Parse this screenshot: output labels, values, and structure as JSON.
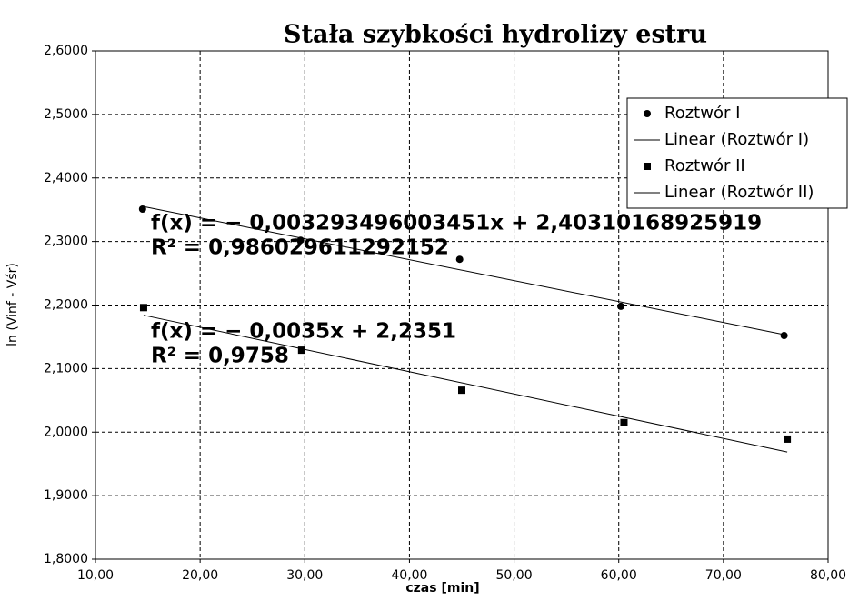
{
  "chart_data": {
    "type": "scatter",
    "title": "Stała szybkości hydrolizy estru",
    "xlabel": "czas [min]",
    "ylabel": "ln (Vinf  - Vśr)",
    "xlim": [
      10,
      80
    ],
    "ylim": [
      1.8,
      2.6
    ],
    "xticks": [
      {
        "value": 10,
        "label": "10,00"
      },
      {
        "value": 20,
        "label": "20,00"
      },
      {
        "value": 30,
        "label": "30,00"
      },
      {
        "value": 40,
        "label": "40,00"
      },
      {
        "value": 50,
        "label": "50,00"
      },
      {
        "value": 60,
        "label": "60,00"
      },
      {
        "value": 70,
        "label": "70,00"
      },
      {
        "value": 80,
        "label": "80,00"
      }
    ],
    "yticks": [
      {
        "value": 1.8,
        "label": "1,8000"
      },
      {
        "value": 1.9,
        "label": "1,9000"
      },
      {
        "value": 2.0,
        "label": "2,0000"
      },
      {
        "value": 2.1,
        "label": "2,1000"
      },
      {
        "value": 2.2,
        "label": "2,2000"
      },
      {
        "value": 2.3,
        "label": "2,3000"
      },
      {
        "value": 2.4,
        "label": "2,4000"
      },
      {
        "value": 2.5,
        "label": "2,5000"
      },
      {
        "value": 2.6,
        "label": "2,6000"
      }
    ],
    "grid": true,
    "legend_position": "upper right",
    "series": [
      {
        "name": "Roztwór I",
        "marker": "circle",
        "color": "#000000",
        "x": [
          14.5,
          29.6,
          44.8,
          60.2,
          75.8
        ],
        "values": [
          2.351,
          2.302,
          2.272,
          2.198,
          2.152
        ],
        "trendline": {
          "name": "Linear (Roztwór I)",
          "slope": -0.003293496003451,
          "intercept": 2.40310168925919,
          "equation": "f(x) = − 0,003293496003451x + 2,40310168925919",
          "r2": "R² = 0,986029611292152"
        }
      },
      {
        "name": "Roztwór II",
        "marker": "square",
        "color": "#000000",
        "x": [
          14.6,
          29.7,
          45.0,
          60.5,
          76.1
        ],
        "values": [
          2.196,
          2.129,
          2.066,
          2.015,
          1.989
        ],
        "trendline": {
          "name": "Linear (Roztwór II)",
          "slope": -0.0035,
          "intercept": 2.2351,
          "equation": "f(x) = − 0,0035x + 2,2351",
          "r2": "R² = 0,9758"
        }
      }
    ]
  }
}
